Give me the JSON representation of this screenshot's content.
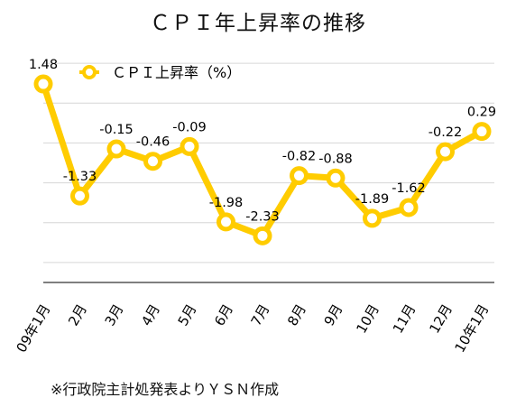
{
  "chart_data": {
    "type": "line",
    "title": "ＣＰＩ年上昇率の推移",
    "categories": [
      "09年1月",
      "2月",
      "3月",
      "4月",
      "5月",
      "6月",
      "7月",
      "8月",
      "9月",
      "10月",
      "11月",
      "12月",
      "10年1月"
    ],
    "series": [
      {
        "name": "ＣＰＩ上昇率（%）",
        "values": [
          1.48,
          -1.33,
          -0.15,
          -0.46,
          -0.09,
          -1.98,
          -2.33,
          -0.82,
          -0.88,
          -1.89,
          -1.62,
          -0.22,
          0.29
        ],
        "labels": [
          "1.48",
          "-1.33",
          "-0.15",
          "-0.46",
          "-0.09",
          "-1.98",
          "-2.33",
          "-0.82",
          "-0.88",
          "-1.89",
          "-1.62",
          "-0.22",
          "0.29"
        ],
        "color": "#FFCC00"
      }
    ],
    "grid": true,
    "legend": "top-left",
    "ylim": [
      -3.5,
      2.5
    ]
  },
  "note": "※行政院主計処発表よりＹＳＮ作成"
}
